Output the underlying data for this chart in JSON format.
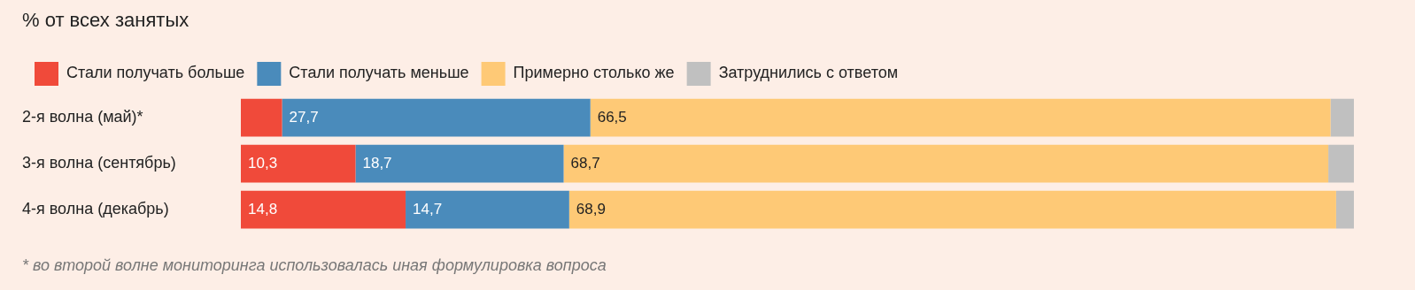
{
  "chart_data": {
    "type": "bar",
    "orientation": "horizontal",
    "stacked": true,
    "title": "% от всех занятых",
    "categories": [
      "2-я волна (май)*",
      "3-я волна (сентябрь)",
      "4-я волна (декабрь)"
    ],
    "series": [
      {
        "name": "Стали получать больше",
        "color": "#f04a3a",
        "values": [
          3.7,
          10.3,
          14.8
        ],
        "value_labels": [
          null,
          "10,3",
          "14,8"
        ]
      },
      {
        "name": "Стали получать меньше",
        "color": "#4a8bbb",
        "values": [
          27.7,
          18.7,
          14.7
        ],
        "value_labels": [
          "27,7",
          "18,7",
          "14,7"
        ]
      },
      {
        "name": "Примерно столько же",
        "color": "#fec976",
        "values": [
          66.5,
          68.7,
          68.9
        ],
        "value_labels": [
          "66,5",
          "68,7",
          "68,9"
        ]
      },
      {
        "name": "Затруднились с ответом",
        "color": "#c0c0c0",
        "values": [
          2.1,
          2.3,
          1.6
        ],
        "value_labels": [
          null,
          null,
          null
        ]
      }
    ],
    "xlim": [
      0,
      100
    ],
    "tick_labels": "y",
    "legend": "top left",
    "annotations": [
      "* во второй волне мониторинга использовалась иная формулировка вопроса"
    ]
  }
}
